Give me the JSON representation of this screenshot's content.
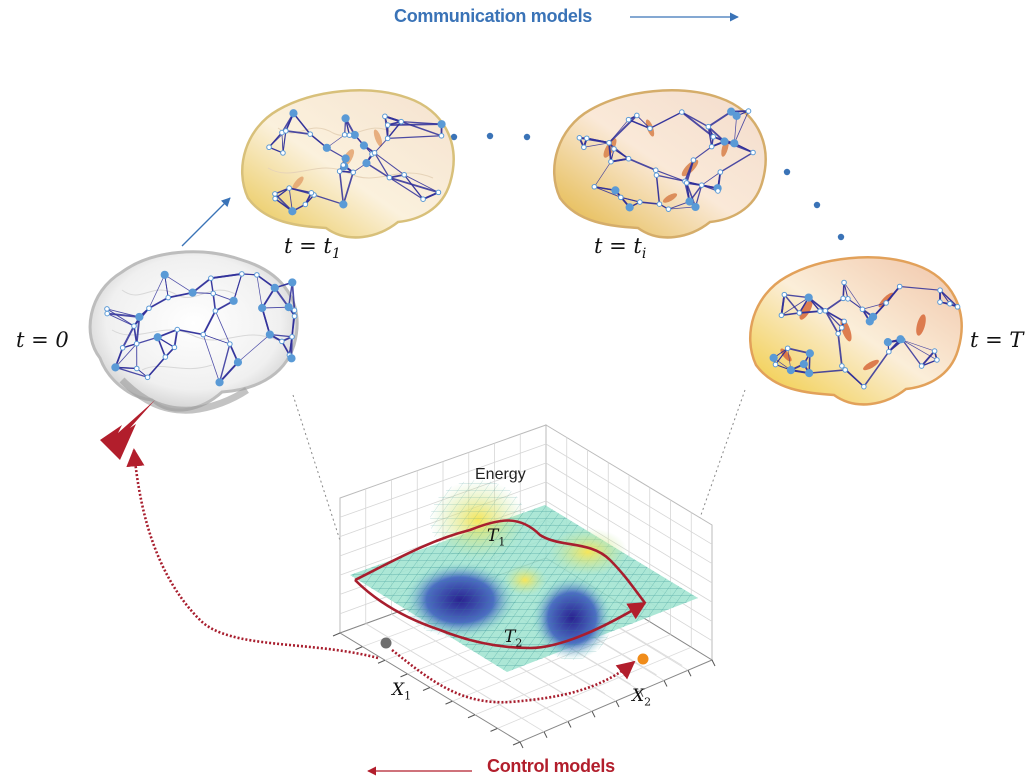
{
  "headers": {
    "communication": "Communication models",
    "control": "Control models"
  },
  "time_labels": {
    "t0": {
      "var": "t",
      "eq": " = ",
      "val": "0",
      "sub": ""
    },
    "t1": {
      "var": "t",
      "eq": " = ",
      "val": "t",
      "sub": "1"
    },
    "ti": {
      "var": "t",
      "eq": " = ",
      "val": "t",
      "sub": "i"
    },
    "tT": {
      "var": "t",
      "eq": " = ",
      "val": "T",
      "sub": ""
    }
  },
  "landscape": {
    "z_label": "Energy",
    "x1_label": {
      "main": "X",
      "sub": "1"
    },
    "x2_label": {
      "main": "X",
      "sub": "2"
    },
    "traj1": {
      "main": "T",
      "sub": "1"
    },
    "traj2": {
      "main": "T",
      "sub": "2"
    }
  },
  "colors": {
    "communication": "#3a73b7",
    "control": "#b21e2c",
    "network_edge": "#2f2f9a",
    "network_node": "#5a9ad6"
  }
}
